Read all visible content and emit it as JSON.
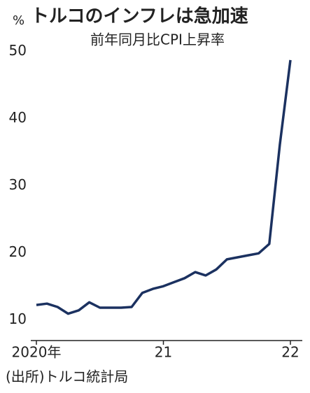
{
  "chart_data": {
    "type": "line",
    "title": "トルコのインフレは急加速",
    "subtitle": "前年同月比CPI上昇率",
    "ylabel": "%",
    "source": "(出所)トルコ統計局",
    "categories": [
      "2020年",
      null,
      null,
      null,
      null,
      null,
      null,
      null,
      null,
      null,
      null,
      null,
      "21",
      null,
      null,
      null,
      null,
      null,
      null,
      null,
      null,
      null,
      null,
      null,
      "22"
    ],
    "series": [
      {
        "name": "前年同月比CPI上昇率",
        "color": "#1b3160",
        "values": [
          12.2,
          12.4,
          11.9,
          10.9,
          11.4,
          12.6,
          11.8,
          11.8,
          11.8,
          11.9,
          14.0,
          14.6,
          15.0,
          15.6,
          16.2,
          17.1,
          16.6,
          17.5,
          19.0,
          19.3,
          19.6,
          19.9,
          21.3,
          36.1,
          48.7
        ]
      }
    ],
    "ylim": [
      6.9,
      51.4
    ],
    "yticks": [
      10,
      20,
      30,
      40,
      50
    ],
    "grid": false
  }
}
